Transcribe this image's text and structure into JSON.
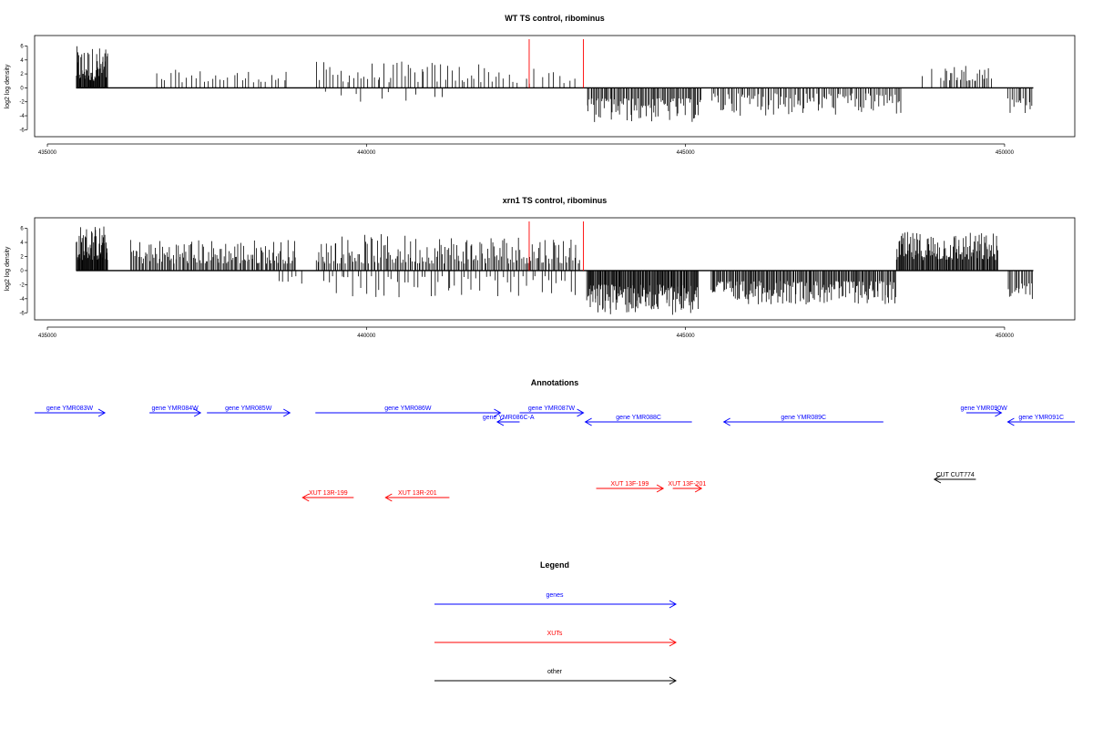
{
  "colors": {
    "genes": "#0000ff",
    "xuts": "#ff0000",
    "other": "#000000",
    "marker": "#ff0000",
    "bars": "#000000"
  },
  "chart_data": [
    {
      "type": "bar",
      "title": "WT TS control, ribominus",
      "ylabel": "log2 log density",
      "xlim": [
        434800,
        451100
      ],
      "ylim": [
        -7,
        7.5
      ],
      "xticks": [
        435000,
        440000,
        445000,
        450000
      ],
      "xtick_labels": [
        "435000",
        "440000",
        "445000",
        "450000"
      ],
      "yticks": [
        6,
        4,
        2,
        0,
        -2,
        -4,
        -6
      ],
      "ytick_labels": [
        "6",
        "4",
        "2",
        "0",
        "-2",
        "-4",
        "-6"
      ],
      "baseline": [
        435450,
        450450
      ],
      "markers": [
        442550,
        443400
      ],
      "clusters": [
        {
          "from": 435450,
          "to": 435950,
          "sign": 1,
          "n": 55,
          "min": 1.0,
          "max": 6.0
        },
        {
          "from": 436700,
          "to": 438800,
          "sign": 1,
          "n": 32,
          "min": 0.8,
          "max": 2.6
        },
        {
          "from": 439200,
          "to": 442100,
          "sign": 1,
          "n": 55,
          "min": 0.8,
          "max": 3.8
        },
        {
          "from": 439300,
          "to": 441300,
          "sign": -1,
          "n": 10,
          "min": 0.5,
          "max": 2.0
        },
        {
          "from": 442100,
          "to": 443300,
          "sign": 1,
          "n": 14,
          "min": 0.6,
          "max": 2.8
        },
        {
          "from": 443450,
          "to": 445250,
          "sign": -1,
          "n": 95,
          "min": 1.5,
          "max": 5.0
        },
        {
          "from": 445400,
          "to": 448400,
          "sign": -1,
          "n": 110,
          "min": 0.8,
          "max": 4.0
        },
        {
          "from": 448700,
          "to": 449000,
          "sign": 1,
          "n": 2,
          "min": 1.5,
          "max": 3.0
        },
        {
          "from": 449000,
          "to": 449800,
          "sign": 1,
          "n": 28,
          "min": 1.0,
          "max": 3.6
        },
        {
          "from": 450050,
          "to": 450450,
          "sign": -1,
          "n": 14,
          "min": 1.5,
          "max": 4.0
        }
      ]
    },
    {
      "type": "bar",
      "title": "xrn1 TS control, ribominus",
      "ylabel": "log2 log density",
      "xlim": [
        434800,
        451100
      ],
      "ylim": [
        -7,
        7.5
      ],
      "xticks": [
        435000,
        440000,
        445000,
        450000
      ],
      "xtick_labels": [
        "435000",
        "440000",
        "445000",
        "450000"
      ],
      "yticks": [
        6,
        4,
        2,
        0,
        -2,
        -4,
        -6
      ],
      "ytick_labels": [
        "6",
        "4",
        "2",
        "0",
        "-2",
        "-4",
        "-6"
      ],
      "baseline": [
        435450,
        450450
      ],
      "markers": [
        442550,
        443400
      ],
      "clusters": [
        {
          "from": 435450,
          "to": 435950,
          "sign": 1,
          "n": 60,
          "min": 1.5,
          "max": 6.5
        },
        {
          "from": 436300,
          "to": 438900,
          "sign": 1,
          "n": 130,
          "min": 1.0,
          "max": 4.5
        },
        {
          "from": 438600,
          "to": 439000,
          "sign": -1,
          "n": 6,
          "min": 0.8,
          "max": 2.0
        },
        {
          "from": 439200,
          "to": 443350,
          "sign": 1,
          "n": 170,
          "min": 1.0,
          "max": 5.2
        },
        {
          "from": 439300,
          "to": 443300,
          "sign": -1,
          "n": 60,
          "min": 0.8,
          "max": 3.8
        },
        {
          "from": 443450,
          "to": 445200,
          "sign": -1,
          "n": 150,
          "min": 2.0,
          "max": 6.3
        },
        {
          "from": 445400,
          "to": 448300,
          "sign": -1,
          "n": 190,
          "min": 1.5,
          "max": 4.8
        },
        {
          "from": 448300,
          "to": 449900,
          "sign": 1,
          "n": 130,
          "min": 1.5,
          "max": 5.5
        },
        {
          "from": 450050,
          "to": 450450,
          "sign": -1,
          "n": 18,
          "min": 1.8,
          "max": 4.2
        }
      ]
    }
  ],
  "annotations": {
    "title": "Annotations",
    "xlim": [
      434800,
      451100
    ],
    "genes": [
      {
        "label": "gene YMR083W",
        "from": 434800,
        "to": 435900,
        "strand": "+",
        "row": 0
      },
      {
        "label": "gene YMR084W",
        "from": 436600,
        "to": 437400,
        "strand": "+",
        "row": 0
      },
      {
        "label": "gene YMR085W",
        "from": 437500,
        "to": 438800,
        "strand": "+",
        "row": 0
      },
      {
        "label": "gene YMR086W",
        "from": 439200,
        "to": 442100,
        "strand": "+",
        "row": 0
      },
      {
        "label": "gene YMR086C-A",
        "from": 442050,
        "to": 442400,
        "strand": "-",
        "row": 1
      },
      {
        "label": "gene YMR087W",
        "from": 442400,
        "to": 443400,
        "strand": "+",
        "row": 0
      },
      {
        "label": "gene YMR088C",
        "from": 443430,
        "to": 445100,
        "strand": "-",
        "row": 1
      },
      {
        "label": "gene YMR089C",
        "from": 445600,
        "to": 448100,
        "strand": "-",
        "row": 1
      },
      {
        "label": "gene YMR090W",
        "from": 449400,
        "to": 449950,
        "strand": "+",
        "row": 0
      },
      {
        "label": "gene YMR091C",
        "from": 450050,
        "to": 451100,
        "strand": "-",
        "row": 1
      }
    ],
    "xuts": [
      {
        "label": "XUT 13R-199",
        "from": 439000,
        "to": 439800,
        "strand": "-",
        "row": 1
      },
      {
        "label": "XUT 13R-201",
        "from": 440300,
        "to": 441300,
        "strand": "-",
        "row": 1
      },
      {
        "label": "XUT 13F-199",
        "from": 443600,
        "to": 444650,
        "strand": "+",
        "row": 0
      },
      {
        "label": "XUT 13F-201",
        "from": 444800,
        "to": 445250,
        "strand": "+",
        "row": 0
      }
    ],
    "other": [
      {
        "label": "CUT CUT774",
        "from": 448900,
        "to": 449550,
        "strand": "-",
        "row": 0
      }
    ]
  },
  "legend": {
    "title": "Legend",
    "items": [
      {
        "label": "genes",
        "color_key": "genes"
      },
      {
        "label": "XUTs",
        "color_key": "xuts"
      },
      {
        "label": "other",
        "color_key": "other"
      }
    ]
  }
}
